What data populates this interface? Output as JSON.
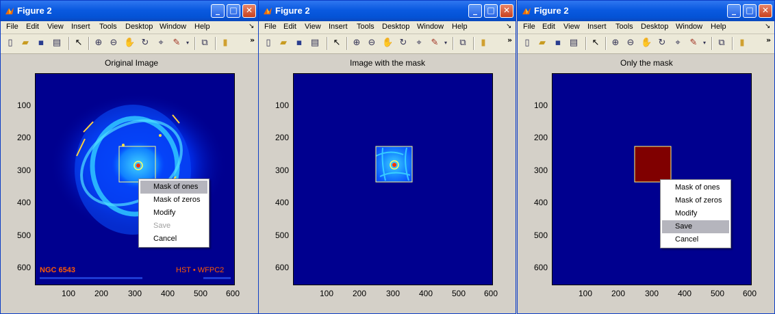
{
  "windows": [
    {
      "title": "Figure 2",
      "axes_title": "Original Image",
      "image": "nebula",
      "context_menu": [
        {
          "label": "Mask of ones",
          "highlighted": true,
          "disabled": false
        },
        {
          "label": "Mask of zeros",
          "highlighted": false,
          "disabled": false
        },
        {
          "label": "Modify",
          "highlighted": false,
          "disabled": false
        },
        {
          "label": "Save",
          "highlighted": false,
          "disabled": true
        },
        {
          "label": "Cancel",
          "highlighted": false,
          "disabled": false
        }
      ],
      "overlay_left": "NGC 6543",
      "overlay_right": "HST • WFPC2"
    },
    {
      "title": "Figure 2",
      "axes_title": "Image with the mask",
      "image": "masked",
      "context_menu": null
    },
    {
      "title": "Figure 2",
      "axes_title": "Only the mask",
      "image": "mask",
      "context_menu": [
        {
          "label": "Mask of ones",
          "highlighted": false,
          "disabled": false
        },
        {
          "label": "Mask of zeros",
          "highlighted": false,
          "disabled": false
        },
        {
          "label": "Modify",
          "highlighted": false,
          "disabled": false
        },
        {
          "label": "Save",
          "highlighted": true,
          "disabled": false
        },
        {
          "label": "Cancel",
          "highlighted": false,
          "disabled": false
        }
      ]
    }
  ],
  "menu_labels": [
    "File",
    "Edit",
    "View",
    "Insert",
    "Tools",
    "Desktop",
    "Window",
    "Help"
  ],
  "toolbar_icons": [
    "new-figure-icon",
    "open-file-icon",
    "save-icon",
    "print-icon",
    "edit-plot-icon",
    "zoom-in-icon",
    "zoom-out-icon",
    "pan-icon",
    "rotate-3d-icon",
    "data-cursor-icon",
    "brush-icon",
    "link-plot-icon",
    "colorbar-icon"
  ],
  "y_ticks": [
    "100",
    "200",
    "300",
    "400",
    "500",
    "600"
  ],
  "x_ticks": [
    "100",
    "200",
    "300",
    "400",
    "500",
    "600"
  ],
  "colors": {
    "axes_bg": "#00008f",
    "mask_fill": "#800000",
    "roi_border": "#ffff80",
    "menu_highlight": "#b5b5bd"
  }
}
